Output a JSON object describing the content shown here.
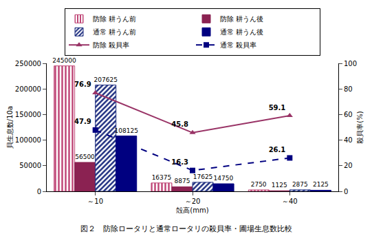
{
  "chart_data": {
    "type": "bar",
    "title": "図２　防除ロータリと通常ロータリの殺貝率・圃場生息数比較",
    "x_label": "殻高(mm)",
    "y_label": "貝生息数/10a",
    "y2_label": "殺貝率(%)",
    "categories": [
      "～10",
      "～20",
      "～40"
    ],
    "series": [
      {
        "name": "防除 耕うん前",
        "color": "#c04878",
        "marker": "striped",
        "values": [
          245000,
          16375,
          2750
        ]
      },
      {
        "name": "防除 耕うん後",
        "color": "#8b2252",
        "marker": "solid",
        "values": [
          56500,
          8875,
          1125
        ]
      },
      {
        "name": "通常 耕うん前",
        "color": "#1f2f80",
        "marker": "hatched",
        "values": [
          207625,
          17625,
          2875
        ]
      },
      {
        "name": "通常 耕うん後",
        "color": "#000080",
        "marker": "solid",
        "values": [
          108125,
          14750,
          2125
        ]
      },
      {
        "name": "防除 殺貝率",
        "type": "line",
        "axis": "y2",
        "color": "#993366",
        "marker": "triangle-up",
        "line_style": "solid",
        "values": [
          76.9,
          45.8,
          59.1
        ]
      },
      {
        "name": "通常 殺貝率",
        "type": "line",
        "axis": "y2",
        "color": "#000080",
        "marker": "square",
        "line_style": "dash",
        "values": [
          47.9,
          16.3,
          26.1
        ]
      }
    ],
    "ylim": [
      0,
      250000
    ],
    "yticks": [
      0,
      50000,
      100000,
      150000,
      200000,
      250000
    ],
    "y2lim": [
      0,
      100
    ],
    "y2ticks": [
      0,
      20,
      40,
      60,
      80,
      100
    ],
    "grid": false,
    "legend": "top",
    "data_labels": true
  }
}
